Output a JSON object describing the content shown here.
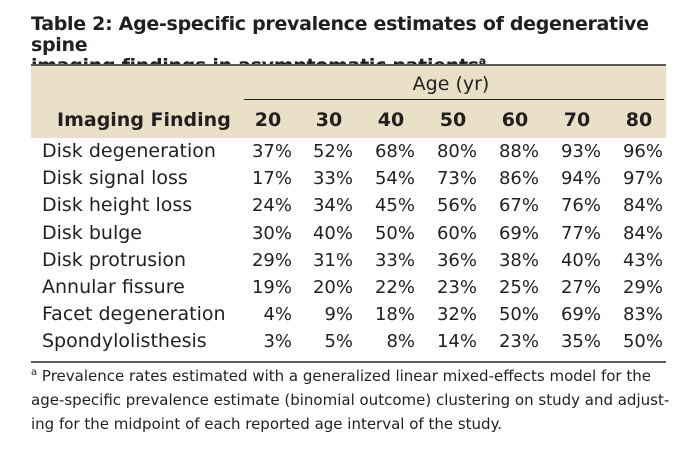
{
  "table": {
    "title_line1": "Table 2: Age-specific prevalence estimates of degenerative spine",
    "title_line2": "imaging findings in asymptomatic patients",
    "title_footnote_marker": "a",
    "age_group_label": "Age (yr)",
    "finding_header": "Imaging Finding",
    "ages": [
      "20",
      "30",
      "40",
      "50",
      "60",
      "70",
      "80"
    ],
    "rows": [
      {
        "finding": "Disk degeneration",
        "values": [
          "37%",
          "52%",
          "68%",
          "80%",
          "88%",
          "93%",
          "96%"
        ]
      },
      {
        "finding": "Disk signal loss",
        "values": [
          "17%",
          "33%",
          "54%",
          "73%",
          "86%",
          "94%",
          "97%"
        ]
      },
      {
        "finding": "Disk height loss",
        "values": [
          "24%",
          "34%",
          "45%",
          "56%",
          "67%",
          "76%",
          "84%"
        ]
      },
      {
        "finding": "Disk bulge",
        "values": [
          "30%",
          "40%",
          "50%",
          "60%",
          "69%",
          "77%",
          "84%"
        ]
      },
      {
        "finding": "Disk protrusion",
        "values": [
          "29%",
          "31%",
          "33%",
          "36%",
          "38%",
          "40%",
          "43%"
        ]
      },
      {
        "finding": "Annular fissure",
        "values": [
          "19%",
          "20%",
          "22%",
          "23%",
          "25%",
          "27%",
          "29%"
        ]
      },
      {
        "finding": "Facet degeneration",
        "values": [
          "4%",
          "9%",
          "18%",
          "32%",
          "50%",
          "69%",
          "83%"
        ]
      },
      {
        "finding": "Spondylolisthesis",
        "values": [
          "3%",
          "5%",
          "8%",
          "14%",
          "23%",
          "35%",
          "50%"
        ]
      }
    ],
    "footnote_marker": "a",
    "footnote_line1": " Prevalence rates estimated with a generalized linear mixed-effects model for the",
    "footnote_line2": "age-specific prevalence estimate (binomial outcome) clustering on study and adjust-",
    "footnote_line3": "ing for the midpoint of each reported age interval of the study."
  },
  "colors": {
    "header_fill": "#eadfc7",
    "rule": "#5b5b5b",
    "text": "#231f20"
  }
}
